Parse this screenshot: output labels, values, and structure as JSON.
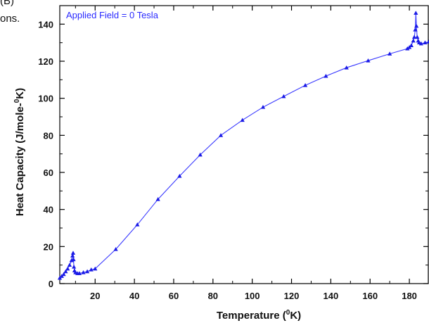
{
  "page": {
    "cropped_text": [
      "(B)",
      "ons."
    ]
  },
  "chart_data": {
    "type": "line",
    "title": "",
    "annotation": "Applied Field = 0 Tesla",
    "xlabel_main": "Temperature (",
    "xlabel_sup": "0",
    "xlabel_end": "K)",
    "ylabel_main": "Heat Capacity (J/mole-",
    "ylabel_sup": "0",
    "ylabel_end": "K)",
    "xlim": [
      2,
      190
    ],
    "ylim": [
      0,
      150
    ],
    "x_ticks": [
      20,
      40,
      60,
      80,
      100,
      120,
      140,
      160,
      180
    ],
    "y_ticks": [
      0,
      20,
      40,
      60,
      80,
      100,
      120,
      140
    ],
    "grid": false,
    "legend": "none",
    "line_color": "#3a3aff",
    "marker_color": "#1a1ae6",
    "series": [
      {
        "marker": "triangle",
        "x": [
          2,
          3,
          4,
          5,
          6,
          7,
          8,
          8.5,
          8.8,
          9,
          9.2,
          9.5,
          10,
          11,
          12,
          14,
          16,
          18,
          20,
          30.5,
          41.5,
          52,
          63,
          73.5,
          84,
          95,
          105.5,
          116,
          127,
          137.5,
          148,
          159,
          170,
          179,
          180,
          181,
          182,
          182.5,
          183,
          183.3,
          183.6,
          184,
          184.5,
          185,
          186,
          188,
          190
        ],
        "y": [
          3,
          4,
          5,
          6.5,
          8,
          10,
          12.5,
          15,
          16.5,
          13,
          9,
          7,
          6,
          5.5,
          5.5,
          6,
          6.5,
          7.5,
          8,
          18.5,
          31.8,
          45.5,
          58,
          69.5,
          80,
          88.2,
          95.2,
          101,
          107,
          112,
          116.5,
          120.3,
          124,
          126.8,
          127.5,
          128.5,
          131,
          133,
          137,
          146,
          139,
          133,
          131,
          130,
          129.5,
          130,
          130.5
        ]
      }
    ]
  }
}
